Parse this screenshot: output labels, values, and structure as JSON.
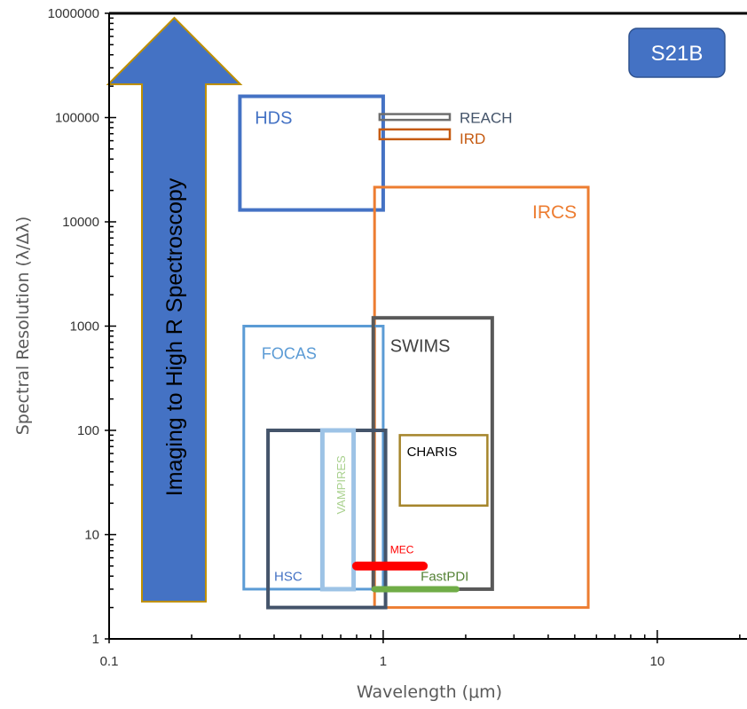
{
  "chart_data": {
    "type": "scatter",
    "title": "",
    "xlabel": "Wavelength (μm)",
    "ylabel": "Spectral Resolution (λ/Δλ)",
    "xscale": "log",
    "yscale": "log",
    "xlim": [
      0.1,
      20
    ],
    "ylim": [
      1,
      1000000
    ],
    "grid": false,
    "x_ticks": [
      {
        "value": 0.1,
        "label": "0.1"
      },
      {
        "value": 1,
        "label": "1"
      },
      {
        "value": 10,
        "label": "10"
      }
    ],
    "y_ticks": [
      {
        "value": 1,
        "label": "1"
      },
      {
        "value": 10,
        "label": "10"
      },
      {
        "value": 100,
        "label": "100"
      },
      {
        "value": 1000,
        "label": "1000"
      },
      {
        "value": 10000,
        "label": "10000"
      },
      {
        "value": 100000,
        "label": "100000"
      },
      {
        "value": 1000000,
        "label": "1000000"
      }
    ],
    "badge": "S21B",
    "arrow_label": "Imaging to High R Spectroscopy",
    "instruments": [
      {
        "name": "HDS",
        "x_range": [
          0.3,
          1.0
        ],
        "r_range": [
          13000,
          160000
        ],
        "color": "#4472C4",
        "label_color": "#4472C4",
        "label_x": 0.34,
        "label_r": 100000,
        "label_size": 20
      },
      {
        "name": "REACH",
        "x_range": [
          0.97,
          1.75
        ],
        "r_range": [
          95000,
          108000
        ],
        "color": "#6E6E6E",
        "label_color": "#44546A",
        "label_x": 1.9,
        "label_r": 100000,
        "label_size": 17
      },
      {
        "name": "IRD",
        "x_range": [
          0.97,
          1.75
        ],
        "r_range": [
          62000,
          77000
        ],
        "color": "#C55A11",
        "label_color": "#C55A11",
        "label_x": 1.9,
        "label_r": 63000,
        "label_size": 17
      },
      {
        "name": "IRCS",
        "x_range": [
          0.93,
          5.6
        ],
        "r_range": [
          2,
          21500
        ],
        "color": "#ED7D31",
        "label_color": "#ED7D31",
        "label_x": 3.5,
        "label_r": 12500,
        "label_size": 21
      },
      {
        "name": "FOCAS",
        "x_range": [
          0.31,
          1.0
        ],
        "r_range": [
          3,
          1000
        ],
        "color": "#5B9BD5",
        "label_color": "#5B9BD5",
        "label_x": 0.36,
        "label_r": 550,
        "label_size": 18
      },
      {
        "name": "SWIMS",
        "x_range": [
          0.92,
          2.5
        ],
        "r_range": [
          3,
          1200
        ],
        "color": "#595959",
        "label_color": "#404040",
        "label_x": 1.06,
        "label_r": 650,
        "label_size": 20
      },
      {
        "name": "HSC",
        "x_range": [
          0.38,
          1.02
        ],
        "r_range": [
          2,
          100
        ],
        "color": "#44546A",
        "label_color": "#4472C4",
        "label_x": 0.4,
        "label_r": 4,
        "label_size": 15
      },
      {
        "name": "VAMPIRES",
        "x_range": [
          0.6,
          0.78
        ],
        "r_range": [
          3,
          100
        ],
        "color": "#9DC3E6",
        "label_color": "#A9D18E",
        "label_x": 0.7,
        "label_r": 30,
        "label_size": 13
      },
      {
        "name": "CHARIS",
        "x_range": [
          1.15,
          2.4
        ],
        "r_range": [
          19,
          90
        ],
        "color": "#A5852B",
        "label_color": "#000000",
        "label_x": 1.22,
        "label_r": 63,
        "label_size": 15
      },
      {
        "name": "MEC",
        "x_range": [
          0.8,
          1.4
        ],
        "r_range": [
          5,
          5
        ],
        "color": "#FF0000",
        "label_color": "#FF0000",
        "label_x": 1.06,
        "label_r": 7.2,
        "label_size": 12
      },
      {
        "name": "FastPDI",
        "x_range": [
          0.93,
          1.85
        ],
        "r_range": [
          3,
          3
        ],
        "color": "#70AD47",
        "label_color": "#548235",
        "label_x": 1.37,
        "label_r": 4,
        "label_size": 15
      }
    ]
  }
}
